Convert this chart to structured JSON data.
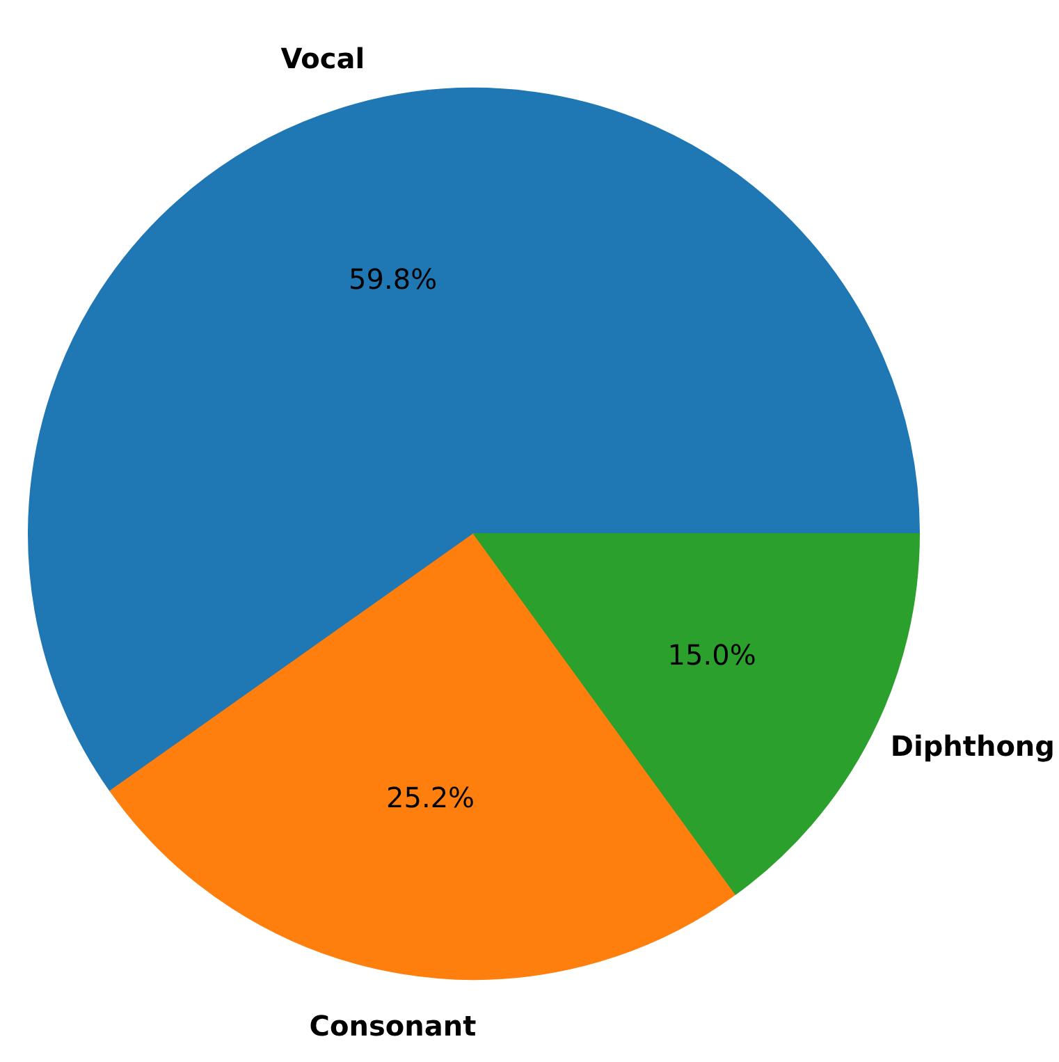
{
  "chart_data": {
    "type": "pie",
    "categories": [
      "Vocal",
      "Consonant",
      "Diphthong"
    ],
    "values": [
      59.8,
      25.2,
      15.0
    ],
    "colors": [
      "#1f77b4",
      "#ff7f0e",
      "#2ca02c"
    ],
    "value_labels": [
      "59.8%",
      "25.2%",
      "15.0%"
    ]
  }
}
